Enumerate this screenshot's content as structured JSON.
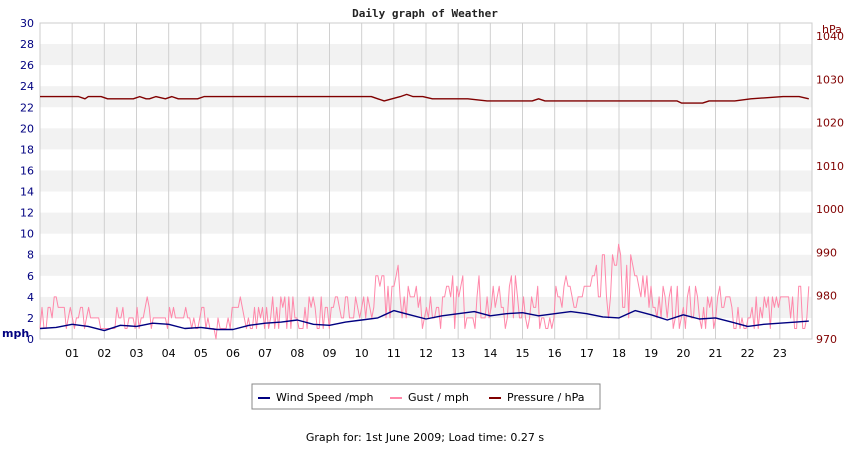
{
  "chart_data": {
    "type": "line",
    "title": "Daily graph of Weather",
    "x_tick_labels": [
      "01",
      "02",
      "03",
      "04",
      "05",
      "06",
      "07",
      "08",
      "09",
      "10",
      "11",
      "12",
      "13",
      "14",
      "15",
      "16",
      "17",
      "18",
      "19",
      "20",
      "21",
      "22",
      "23"
    ],
    "xlim": [
      0,
      24
    ],
    "y_left": {
      "label": "mph",
      "ticks": [
        0,
        2,
        4,
        6,
        8,
        10,
        12,
        14,
        16,
        18,
        20,
        22,
        24,
        26,
        28,
        30
      ],
      "ylim": [
        0,
        30
      ]
    },
    "y_right": {
      "label": "hPa",
      "ticks": [
        970,
        980,
        990,
        1000,
        1010,
        1020,
        1030,
        1040
      ],
      "ylim": [
        970,
        1043
      ]
    },
    "grid": "horizontal-bands-and-vertical-lines",
    "legend_placement": "bottom-center",
    "series": [
      {
        "name": "Wind Speed /mph",
        "color": "#000080",
        "axis": "left",
        "x": [
          0,
          0.5,
          1,
          1.5,
          2,
          2.5,
          3,
          3.5,
          4,
          4.5,
          5,
          5.5,
          6,
          6.5,
          7,
          7.5,
          8,
          8.5,
          9,
          9.5,
          10,
          10.5,
          11,
          11.5,
          12,
          12.5,
          13,
          13.5,
          14,
          14.5,
          15,
          15.5,
          16,
          16.5,
          17,
          17.5,
          18,
          18.5,
          19,
          19.5,
          20,
          20.5,
          21,
          21.5,
          22,
          22.5,
          23,
          23.5,
          23.9
        ],
        "values": [
          1.0,
          1.1,
          1.4,
          1.2,
          0.8,
          1.3,
          1.2,
          1.5,
          1.4,
          1.0,
          1.1,
          0.9,
          0.9,
          1.3,
          1.5,
          1.6,
          1.8,
          1.4,
          1.3,
          1.6,
          1.8,
          2.0,
          2.7,
          2.3,
          1.9,
          2.2,
          2.4,
          2.6,
          2.2,
          2.4,
          2.5,
          2.2,
          2.4,
          2.6,
          2.4,
          2.1,
          2.0,
          2.7,
          2.3,
          1.8,
          2.3,
          1.9,
          2.0,
          1.6,
          1.2,
          1.4,
          1.5,
          1.6,
          1.7
        ]
      },
      {
        "name": "Gust / mph",
        "color": "#ff88aa",
        "axis": "left",
        "x": [
          0,
          0.5,
          1,
          1.5,
          2,
          2.5,
          3,
          3.5,
          4,
          4.5,
          5,
          5.5,
          6,
          6.5,
          7,
          7.5,
          8,
          8.5,
          9,
          9.5,
          10,
          10.5,
          11,
          11.5,
          12,
          12.5,
          13,
          13.5,
          14,
          14.5,
          15,
          15.5,
          16,
          16.5,
          17,
          17.5,
          18,
          18.5,
          19,
          19.5,
          20,
          20.5,
          21,
          21.5,
          22,
          22.5,
          23,
          23.5,
          23.9
        ],
        "values": [
          2,
          3,
          2,
          2,
          1,
          2,
          2,
          3,
          2,
          2,
          2,
          1,
          2,
          3,
          2,
          3,
          2,
          3,
          2,
          3,
          3,
          4,
          5,
          4,
          3,
          3,
          4,
          4,
          3,
          4,
          4,
          3,
          3,
          4,
          4,
          5,
          6,
          5,
          4,
          3,
          4,
          3,
          3,
          3,
          2,
          3,
          3,
          3,
          3
        ]
      },
      {
        "name": "Pressure / hPa",
        "color": "#800000",
        "axis": "right",
        "x": [
          0,
          1.2,
          1.4,
          1.5,
          1.9,
          2.1,
          2.9,
          3.1,
          3.3,
          3.4,
          3.6,
          3.9,
          4.1,
          4.3,
          4.5,
          4.9,
          5.1,
          10.3,
          10.5,
          10.7,
          11.2,
          11.4,
          11.6,
          11.9,
          12.2,
          12.8,
          13.3,
          13.9,
          14.3,
          14.9,
          15.3,
          15.5,
          15.7,
          17.0,
          17.5,
          18.0,
          18.8,
          19.4,
          19.8,
          19.95,
          20.1,
          20.6,
          20.8,
          21.6,
          22.1,
          23.1,
          23.6,
          23.9
        ],
        "values": [
          1026,
          1026,
          1025.5,
          1026,
          1026,
          1025.5,
          1025.5,
          1026,
          1025.5,
          1025.5,
          1026,
          1025.5,
          1026,
          1025.5,
          1025.5,
          1025.5,
          1026,
          1026,
          1025.5,
          1025,
          1026,
          1026.5,
          1026,
          1026,
          1025.5,
          1025.5,
          1025.5,
          1025,
          1025,
          1025,
          1025,
          1025.5,
          1025,
          1025,
          1025,
          1025,
          1025,
          1025,
          1025,
          1024.5,
          1024.5,
          1024.5,
          1025,
          1025,
          1025.5,
          1026,
          1026,
          1025.5
        ]
      }
    ]
  },
  "legend": {
    "items": [
      {
        "label": "Wind Speed /mph",
        "color": "#000080"
      },
      {
        "label": "Gust / mph",
        "color": "#ff88aa"
      },
      {
        "label": "Pressure / hPa",
        "color": "#800000"
      }
    ]
  },
  "footer": {
    "text": "Graph for: 1st June 2009; Load time: 0.27 s"
  },
  "colors": {
    "left_axis": "#000080",
    "right_axis": "#800000",
    "band": "#f2f2f2",
    "grid": "#d0d0d0"
  }
}
